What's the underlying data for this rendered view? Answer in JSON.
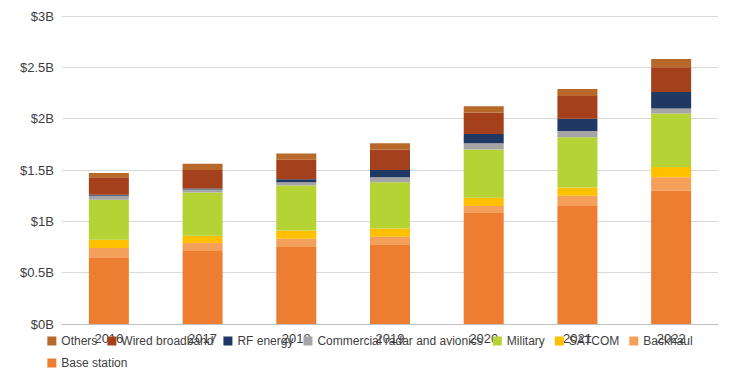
{
  "chart_data": {
    "type": "bar",
    "stacked": true,
    "grid": true,
    "legend": "bottom",
    "categories": [
      "2016",
      "2017",
      "2018",
      "2019",
      "2020",
      "2021",
      "2022"
    ],
    "ylim": [
      0,
      3
    ],
    "yticks": [
      {
        "value": 0,
        "label": "$0B"
      },
      {
        "value": 0.5,
        "label": "$0.5B"
      },
      {
        "value": 1,
        "label": "$1B"
      },
      {
        "value": 1.5,
        "label": "$1.5B"
      },
      {
        "value": 2,
        "label": "$2B"
      },
      {
        "value": 2.5,
        "label": "$2.5B"
      },
      {
        "value": 3,
        "label": "$3B"
      }
    ],
    "series": [
      {
        "name": "Base station",
        "color": "#ed7d31",
        "values": [
          0.65,
          0.71,
          0.75,
          0.77,
          1.08,
          1.15,
          1.3
        ]
      },
      {
        "name": "Backhaul",
        "color": "#f4a05a",
        "values": [
          0.09,
          0.08,
          0.08,
          0.08,
          0.07,
          0.1,
          0.13
        ]
      },
      {
        "name": "SATCOM",
        "color": "#ffc000",
        "values": [
          0.08,
          0.07,
          0.08,
          0.08,
          0.08,
          0.08,
          0.1
        ]
      },
      {
        "name": "Military",
        "color": "#b5d334",
        "values": [
          0.39,
          0.42,
          0.44,
          0.45,
          0.47,
          0.49,
          0.52
        ]
      },
      {
        "name": "Commercial radar and avionics",
        "color": "#a5a5a5",
        "values": [
          0.04,
          0.03,
          0.03,
          0.05,
          0.06,
          0.06,
          0.05
        ]
      },
      {
        "name": "RF energy",
        "color": "#1f3864",
        "values": [
          0.01,
          0.01,
          0.03,
          0.07,
          0.09,
          0.12,
          0.16
        ]
      },
      {
        "name": "Wired broadband",
        "color": "#a5401c",
        "values": [
          0.17,
          0.18,
          0.19,
          0.2,
          0.21,
          0.22,
          0.24
        ]
      },
      {
        "name": "Others",
        "color": "#b8692a",
        "values": [
          0.04,
          0.06,
          0.06,
          0.06,
          0.06,
          0.07,
          0.08
        ]
      }
    ]
  }
}
